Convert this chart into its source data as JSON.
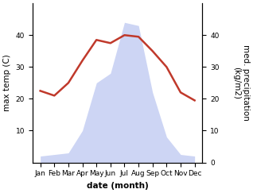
{
  "months": [
    "Jan",
    "Feb",
    "Mar",
    "Apr",
    "May",
    "Jun",
    "Jul",
    "Aug",
    "Sep",
    "Oct",
    "Nov",
    "Dec"
  ],
  "temperature": [
    22.5,
    21.0,
    25.0,
    32.0,
    38.5,
    37.5,
    40.0,
    39.5,
    35.0,
    30.0,
    22.0,
    19.5
  ],
  "precipitation": [
    2.0,
    2.5,
    3.0,
    10.0,
    25.0,
    28.0,
    44.0,
    43.0,
    22.0,
    8.0,
    2.5,
    2.0
  ],
  "temp_color": "#c0392b",
  "precip_fill_color": "#b8c4f0",
  "temp_ylim": [
    0,
    50
  ],
  "precip_ylim": [
    0,
    50
  ],
  "temp_yticks": [
    10,
    20,
    30,
    40
  ],
  "precip_yticks": [
    0,
    10,
    20,
    30,
    40
  ],
  "xlabel": "date (month)",
  "ylabel_left": "max temp (C)",
  "ylabel_right": "med. precipitation\n(kg/m2)",
  "label_fontsize": 7.5,
  "tick_fontsize": 6.5
}
